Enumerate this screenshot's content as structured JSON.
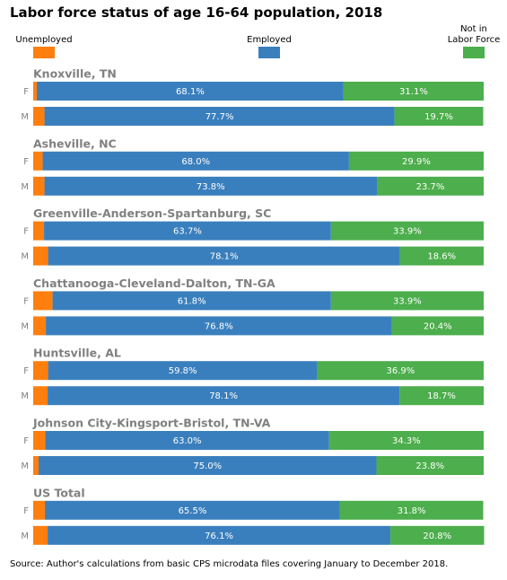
{
  "chart_data": {
    "type": "bar",
    "orientation": "horizontal",
    "stacked": true,
    "title": "Labor force status of age 16-64 population, 2018",
    "source": "Source: Author's calculations from basic CPS microdata files covering January to December 2018.",
    "xlim": [
      0,
      100
    ],
    "grid": false,
    "legend_position": "top",
    "legend": [
      {
        "label": "Unemployed",
        "lines": [
          "Unemployed"
        ],
        "color": "#ff7f0e"
      },
      {
        "label": "Employed",
        "lines": [
          "Employed"
        ],
        "color": "#3a7fbd"
      },
      {
        "label": "Not in Labor Force",
        "lines": [
          "Not in",
          "Labor Force"
        ],
        "color": "#4cae4c"
      }
    ],
    "series_keys": [
      "unemployed",
      "employed",
      "not_in_labor_force"
    ],
    "groups": [
      {
        "name": "Knoxville, TN",
        "rows": [
          {
            "sex": "F",
            "unemployed": 0.8,
            "employed": 68.1,
            "not_in_labor_force": 31.1,
            "labels": [
              "0.8%",
              "68.1%",
              "31.1%"
            ]
          },
          {
            "sex": "M",
            "unemployed": 2.5,
            "employed": 77.7,
            "not_in_labor_force": 19.7,
            "labels": [
              "2.5%",
              "77.7%",
              "19.7%"
            ]
          }
        ]
      },
      {
        "name": "Asheville, NC",
        "rows": [
          {
            "sex": "F",
            "unemployed": 2.1,
            "employed": 68.0,
            "not_in_labor_force": 29.9,
            "labels": [
              "2.1%",
              "68.0%",
              "29.9%"
            ]
          },
          {
            "sex": "M",
            "unemployed": 2.5,
            "employed": 73.8,
            "not_in_labor_force": 23.7,
            "labels": [
              "2.5%",
              "73.8%",
              "23.7%"
            ]
          }
        ]
      },
      {
        "name": "Greenville-Anderson-Spartanburg, SC",
        "rows": [
          {
            "sex": "F",
            "unemployed": 2.4,
            "employed": 63.7,
            "not_in_labor_force": 33.9,
            "labels": [
              "2.4%",
              "63.7%",
              "33.9%"
            ]
          },
          {
            "sex": "M",
            "unemployed": 3.3,
            "employed": 78.1,
            "not_in_labor_force": 18.6,
            "labels": [
              "3.3%",
              "78.1%",
              "18.6%"
            ]
          }
        ]
      },
      {
        "name": "Chattanooga-Cleveland-Dalton, TN-GA",
        "rows": [
          {
            "sex": "F",
            "unemployed": 4.3,
            "employed": 61.8,
            "not_in_labor_force": 33.9,
            "labels": [
              "4.3%",
              "61.8%",
              "33.9%"
            ]
          },
          {
            "sex": "M",
            "unemployed": 2.8,
            "employed": 76.8,
            "not_in_labor_force": 20.4,
            "labels": [
              "2.8%",
              "76.8%",
              "20.4%"
            ]
          }
        ]
      },
      {
        "name": "Huntsville, AL",
        "rows": [
          {
            "sex": "F",
            "unemployed": 3.3,
            "employed": 59.8,
            "not_in_labor_force": 36.9,
            "labels": [
              "3.3%",
              "59.8%",
              "36.9%"
            ]
          },
          {
            "sex": "M",
            "unemployed": 3.2,
            "employed": 78.1,
            "not_in_labor_force": 18.7,
            "labels": [
              "3.2%",
              "78.1%",
              "18.7%"
            ]
          }
        ]
      },
      {
        "name": "Johnson City-Kingsport-Bristol, TN-VA",
        "rows": [
          {
            "sex": "F",
            "unemployed": 2.7,
            "employed": 63.0,
            "not_in_labor_force": 34.3,
            "labels": [
              "2.7%",
              "63.0%",
              "34.3%"
            ]
          },
          {
            "sex": "M",
            "unemployed": 1.2,
            "employed": 75.0,
            "not_in_labor_force": 23.8,
            "labels": [
              "1.2%",
              "75.0%",
              "23.8%"
            ]
          }
        ]
      },
      {
        "name": "US Total",
        "rows": [
          {
            "sex": "F",
            "unemployed": 2.6,
            "employed": 65.5,
            "not_in_labor_force": 31.8,
            "labels": [
              "2.6%",
              "65.5%",
              "31.8%"
            ]
          },
          {
            "sex": "M",
            "unemployed": 3.2,
            "employed": 76.1,
            "not_in_labor_force": 20.8,
            "labels": [
              "3.2%",
              "76.1%",
              "20.8%"
            ]
          }
        ]
      }
    ]
  }
}
